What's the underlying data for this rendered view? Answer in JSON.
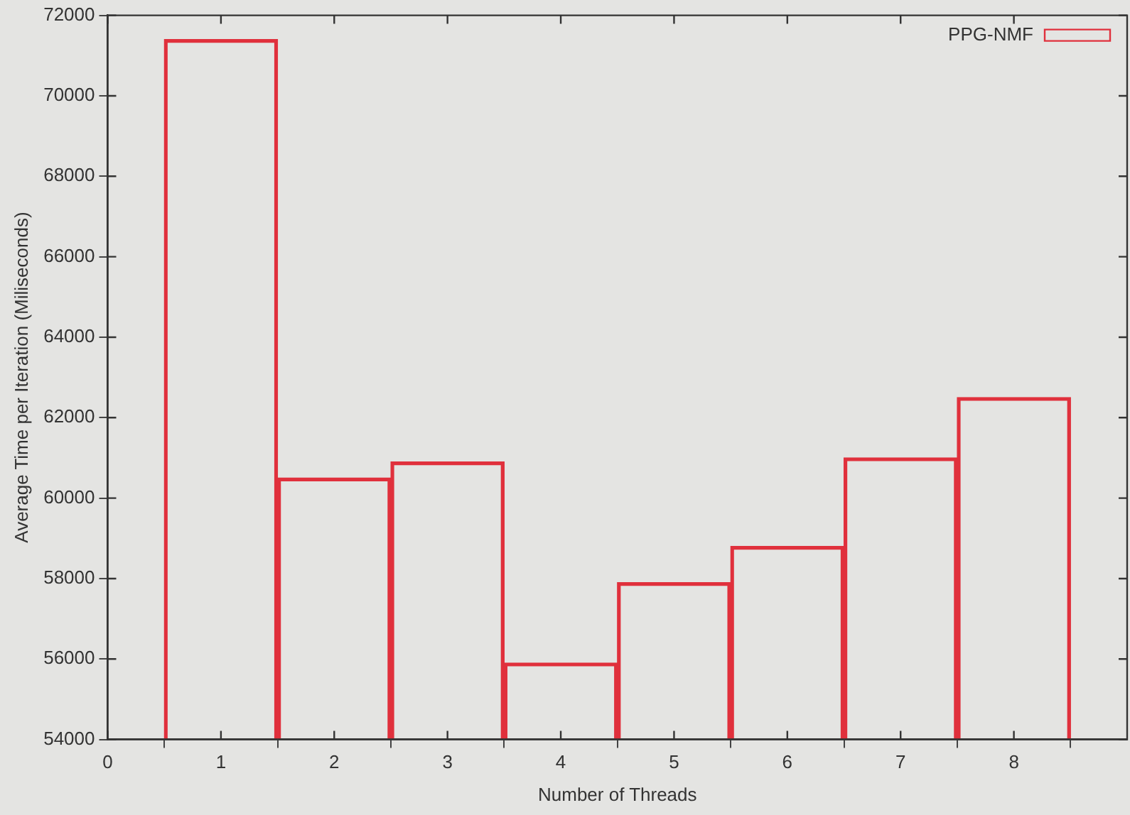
{
  "chart_data": {
    "type": "bar",
    "xlabel": "Number of Threads",
    "ylabel": "Average Time per Iteration (Miliseconds)",
    "x": [
      1,
      2,
      3,
      4,
      5,
      6,
      7,
      8
    ],
    "series": [
      {
        "name": "PPG-NMF",
        "color": "#e0303c",
        "values": [
          71400,
          60500,
          60900,
          55900,
          57900,
          58800,
          61000,
          62500
        ]
      }
    ],
    "xlim": [
      0,
      9
    ],
    "xticks": [
      0,
      1,
      2,
      3,
      4,
      5,
      6,
      7,
      8
    ],
    "ylim": [
      54000,
      72000
    ],
    "yticks": [
      54000,
      56000,
      58000,
      60000,
      62000,
      64000,
      66000,
      68000,
      70000,
      72000
    ],
    "grid": false,
    "legend": "top right"
  }
}
